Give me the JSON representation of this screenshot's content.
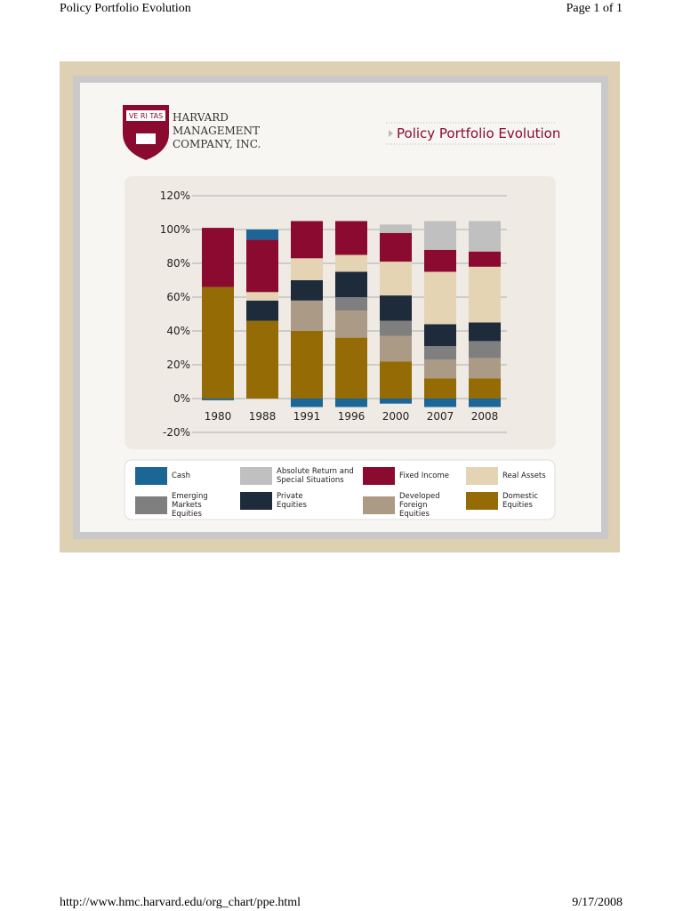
{
  "header": {
    "title": "Policy Portfolio Evolution",
    "page": "Page 1 of 1"
  },
  "footer": {
    "url": "http://www.hmc.harvard.edu/org_chart/ppe.html",
    "date": "9/17/2008"
  },
  "logo": {
    "shield": "VE RI TAS",
    "line1": "Harvard",
    "line2": "Management",
    "line3": "Company, Inc."
  },
  "chart_data": {
    "type": "stacked-bar",
    "title": "Policy Portfolio Evolution",
    "categories": [
      "1980",
      "1988",
      "1991",
      "1996",
      "2000",
      "2007",
      "2008"
    ],
    "ylim": [
      -20,
      120
    ],
    "yticks": [
      {
        "value": 120,
        "label": "120%"
      },
      {
        "value": 100,
        "label": "100%"
      },
      {
        "value": 80,
        "label": "80%"
      },
      {
        "value": 60,
        "label": "60%"
      },
      {
        "value": 40,
        "label": "40%"
      },
      {
        "value": 20,
        "label": "20%"
      },
      {
        "value": 0,
        "label": "0%"
      },
      {
        "value": -20,
        "label": "-20%"
      }
    ],
    "grid": true,
    "series": [
      {
        "name": "Cash",
        "color": "#1b6597",
        "values": [
          -1,
          6,
          -5,
          -5,
          -3,
          -5,
          -5
        ]
      },
      {
        "name": "Absolute Return and Special Situations",
        "color": "#c0c0c0",
        "values": [
          null,
          null,
          null,
          null,
          5,
          17,
          18
        ]
      },
      {
        "name": "Fixed Income",
        "color": "#8a0a30",
        "values": [
          35,
          31,
          22,
          20,
          17,
          13,
          9
        ]
      },
      {
        "name": "Real Assets",
        "color": "#e4d4b3",
        "values": [
          null,
          5,
          13,
          10,
          20,
          31,
          33
        ]
      },
      {
        "name": "Emerging Markets Equities",
        "color": "#7f7f7f",
        "values": [
          null,
          null,
          null,
          8,
          9,
          8,
          10
        ]
      },
      {
        "name": "Private Equities",
        "color": "#1e2b3b",
        "values": [
          null,
          12,
          12,
          15,
          15,
          13,
          11
        ]
      },
      {
        "name": "Developed Foreign Equities",
        "color": "#ab9b86",
        "values": [
          null,
          null,
          18,
          16,
          15,
          11,
          12
        ]
      },
      {
        "name": "Domestic Equities",
        "color": "#956b05",
        "values": [
          66,
          46,
          40,
          36,
          22,
          12,
          12
        ]
      }
    ]
  }
}
